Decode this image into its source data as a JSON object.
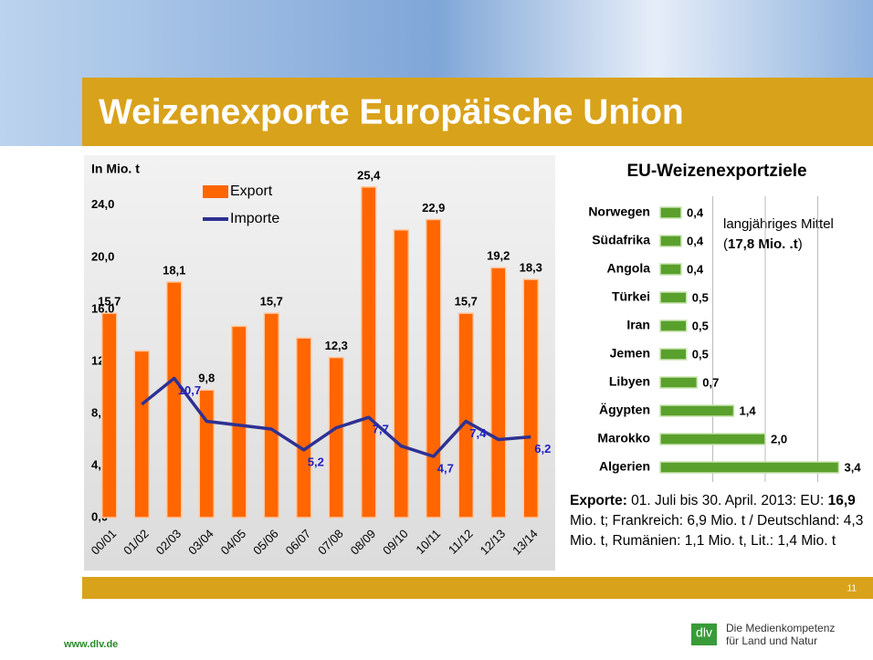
{
  "title": "Weizenexporte Europäische Union",
  "chart_data": [
    {
      "type": "bar",
      "y_label": "In Mio. t",
      "legend": "top-left",
      "grid": false,
      "categories": [
        "00/01",
        "01/02",
        "02/03",
        "03/04",
        "04/05",
        "05/06",
        "06/07",
        "07/08",
        "08/09",
        "09/10",
        "10/11",
        "11/12",
        "12/13",
        "13/14"
      ],
      "ylim": [
        0,
        27
      ],
      "yticks": [
        {
          "value": 0,
          "label": "0,0"
        },
        {
          "value": 4,
          "label": "4,0"
        },
        {
          "value": 8,
          "label": "8,0"
        },
        {
          "value": 12,
          "label": "12,0"
        },
        {
          "value": 16,
          "label": "16,0"
        },
        {
          "value": 20,
          "label": "20,0"
        },
        {
          "value": 24,
          "label": "24,0"
        }
      ],
      "series": [
        {
          "name": "Export",
          "type": "bar",
          "color": "#ff6600",
          "values": [
            15.7,
            12.8,
            18.1,
            9.8,
            14.7,
            15.7,
            13.8,
            12.3,
            25.4,
            22.1,
            22.9,
            15.7,
            19.2,
            18.3
          ],
          "value_labels": [
            "15,7",
            null,
            "18,1",
            "9,8",
            null,
            "15,7",
            null,
            "12,3",
            "25,4",
            null,
            "22,9",
            "15,7",
            "19,2",
            "18,3"
          ]
        },
        {
          "name": "Importe",
          "type": "line",
          "color": "#2e3192",
          "values": [
            null,
            8.7,
            10.7,
            7.4,
            7.1,
            6.8,
            5.2,
            6.9,
            7.7,
            5.5,
            4.7,
            7.4,
            6.0,
            6.2
          ],
          "value_labels": [
            null,
            null,
            "10,7",
            null,
            null,
            null,
            "5,2",
            null,
            "7,7",
            null,
            "4,7",
            "7,4",
            null,
            "6,2"
          ]
        }
      ]
    },
    {
      "type": "barh",
      "title": "EU-Weizenexportziele",
      "color": "#5aa02c",
      "grid": true,
      "categories": [
        "Norwegen",
        "Südafrika",
        "Angola",
        "Türkei",
        "Iran",
        "Jemen",
        "Libyen",
        "Ägypten",
        "Marokko",
        "Algerien"
      ],
      "values": [
        0.4,
        0.4,
        0.4,
        0.5,
        0.5,
        0.5,
        0.7,
        1.4,
        2.0,
        3.4
      ],
      "value_labels": [
        "0,4",
        "0,4",
        "0,4",
        "0,5",
        "0,5",
        "0,5",
        "0,7",
        "1,4",
        "2,0",
        "3,4"
      ],
      "xlim": [
        0,
        4
      ],
      "xticks": [
        1,
        2,
        3
      ],
      "annotation": [
        "langjähriges Mittel",
        "(",
        "17,8 Mio. .t",
        ")"
      ]
    }
  ],
  "note": [
    "Exporte:",
    " 01. Juli bis 30. April. 2013: EU: ",
    "16,9",
    " Mio. t;  Frankreich: 6,9 Mio. t / Deutschland: 4,3 Mio. t, Rumänien: 1,1 Mio. t, Lit.: 1,4 Mio. t"
  ],
  "page_number": "11",
  "footer": {
    "url": "www.dlv.de",
    "logo": "dlv",
    "tagline1": "Die Medienkompetenz",
    "tagline2": "für Land und Natur"
  }
}
